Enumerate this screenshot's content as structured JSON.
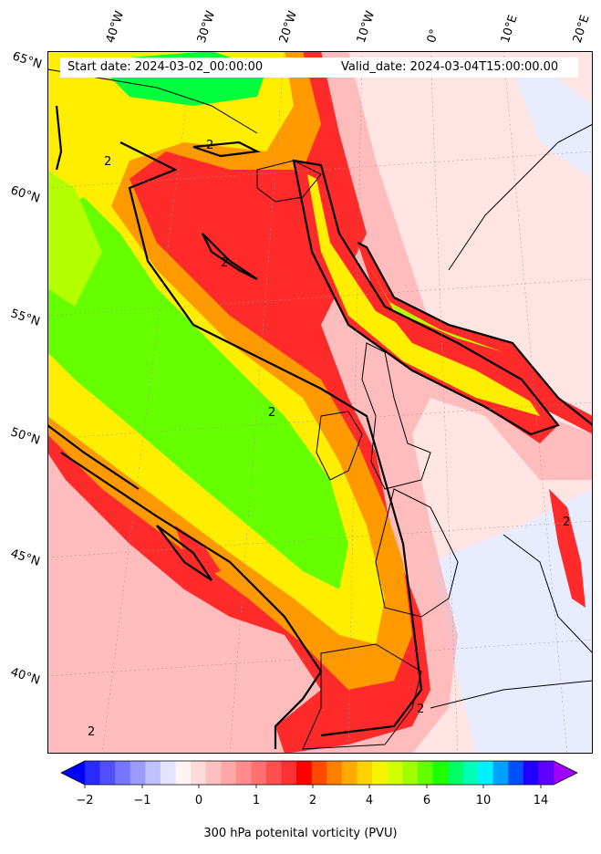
{
  "header": {
    "start_date": "Start date: 2024-03-02_00:00:00",
    "valid_date": "Valid_date: 2024-03-04T15:00:00.00"
  },
  "latitude_labels": [
    "65°N",
    "60°N",
    "55°N",
    "50°N",
    "45°N",
    "40°N"
  ],
  "longitude_labels": [
    "40°W",
    "30°W",
    "20°W",
    "10°W",
    "0°",
    "10°E",
    "20°E"
  ],
  "contour_label": "2",
  "colorbar": {
    "title": "300 hPa potenital vorticity (PVU)",
    "tick_labels": [
      "−2",
      "−1",
      "0",
      "1",
      "2",
      "4",
      "6",
      "10",
      "14"
    ],
    "colors": [
      "#0000ff",
      "#2a2aff",
      "#5050ff",
      "#7575ff",
      "#9a9aff",
      "#c0c0ff",
      "#e4e4ff",
      "#fff4f4",
      "#ffdada",
      "#ffc0c0",
      "#ffa6a6",
      "#ff8c8c",
      "#ff7070",
      "#ff5050",
      "#ff3030",
      "#ff0000",
      "#ff4a00",
      "#ff8000",
      "#ffaa00",
      "#ffd200",
      "#f5f500",
      "#d2ff00",
      "#a0ff00",
      "#64ff00",
      "#1eff00",
      "#00ff64",
      "#00ffb4",
      "#00f0ff",
      "#00a0ff",
      "#0050ff",
      "#2000ff",
      "#6000ff",
      "#a000ff"
    ]
  },
  "fill_colors": {
    "background": "#ffe4e4",
    "light": "#ffcccc",
    "pink": "#ff9a9a",
    "red": "#ff2a2a",
    "orange": "#ff9900",
    "yellow": "#ffee00",
    "lime": "#b4ff00",
    "green": "#66ff00",
    "bright_green": "#00ff3c",
    "blue_light": "#e8ecff"
  }
}
